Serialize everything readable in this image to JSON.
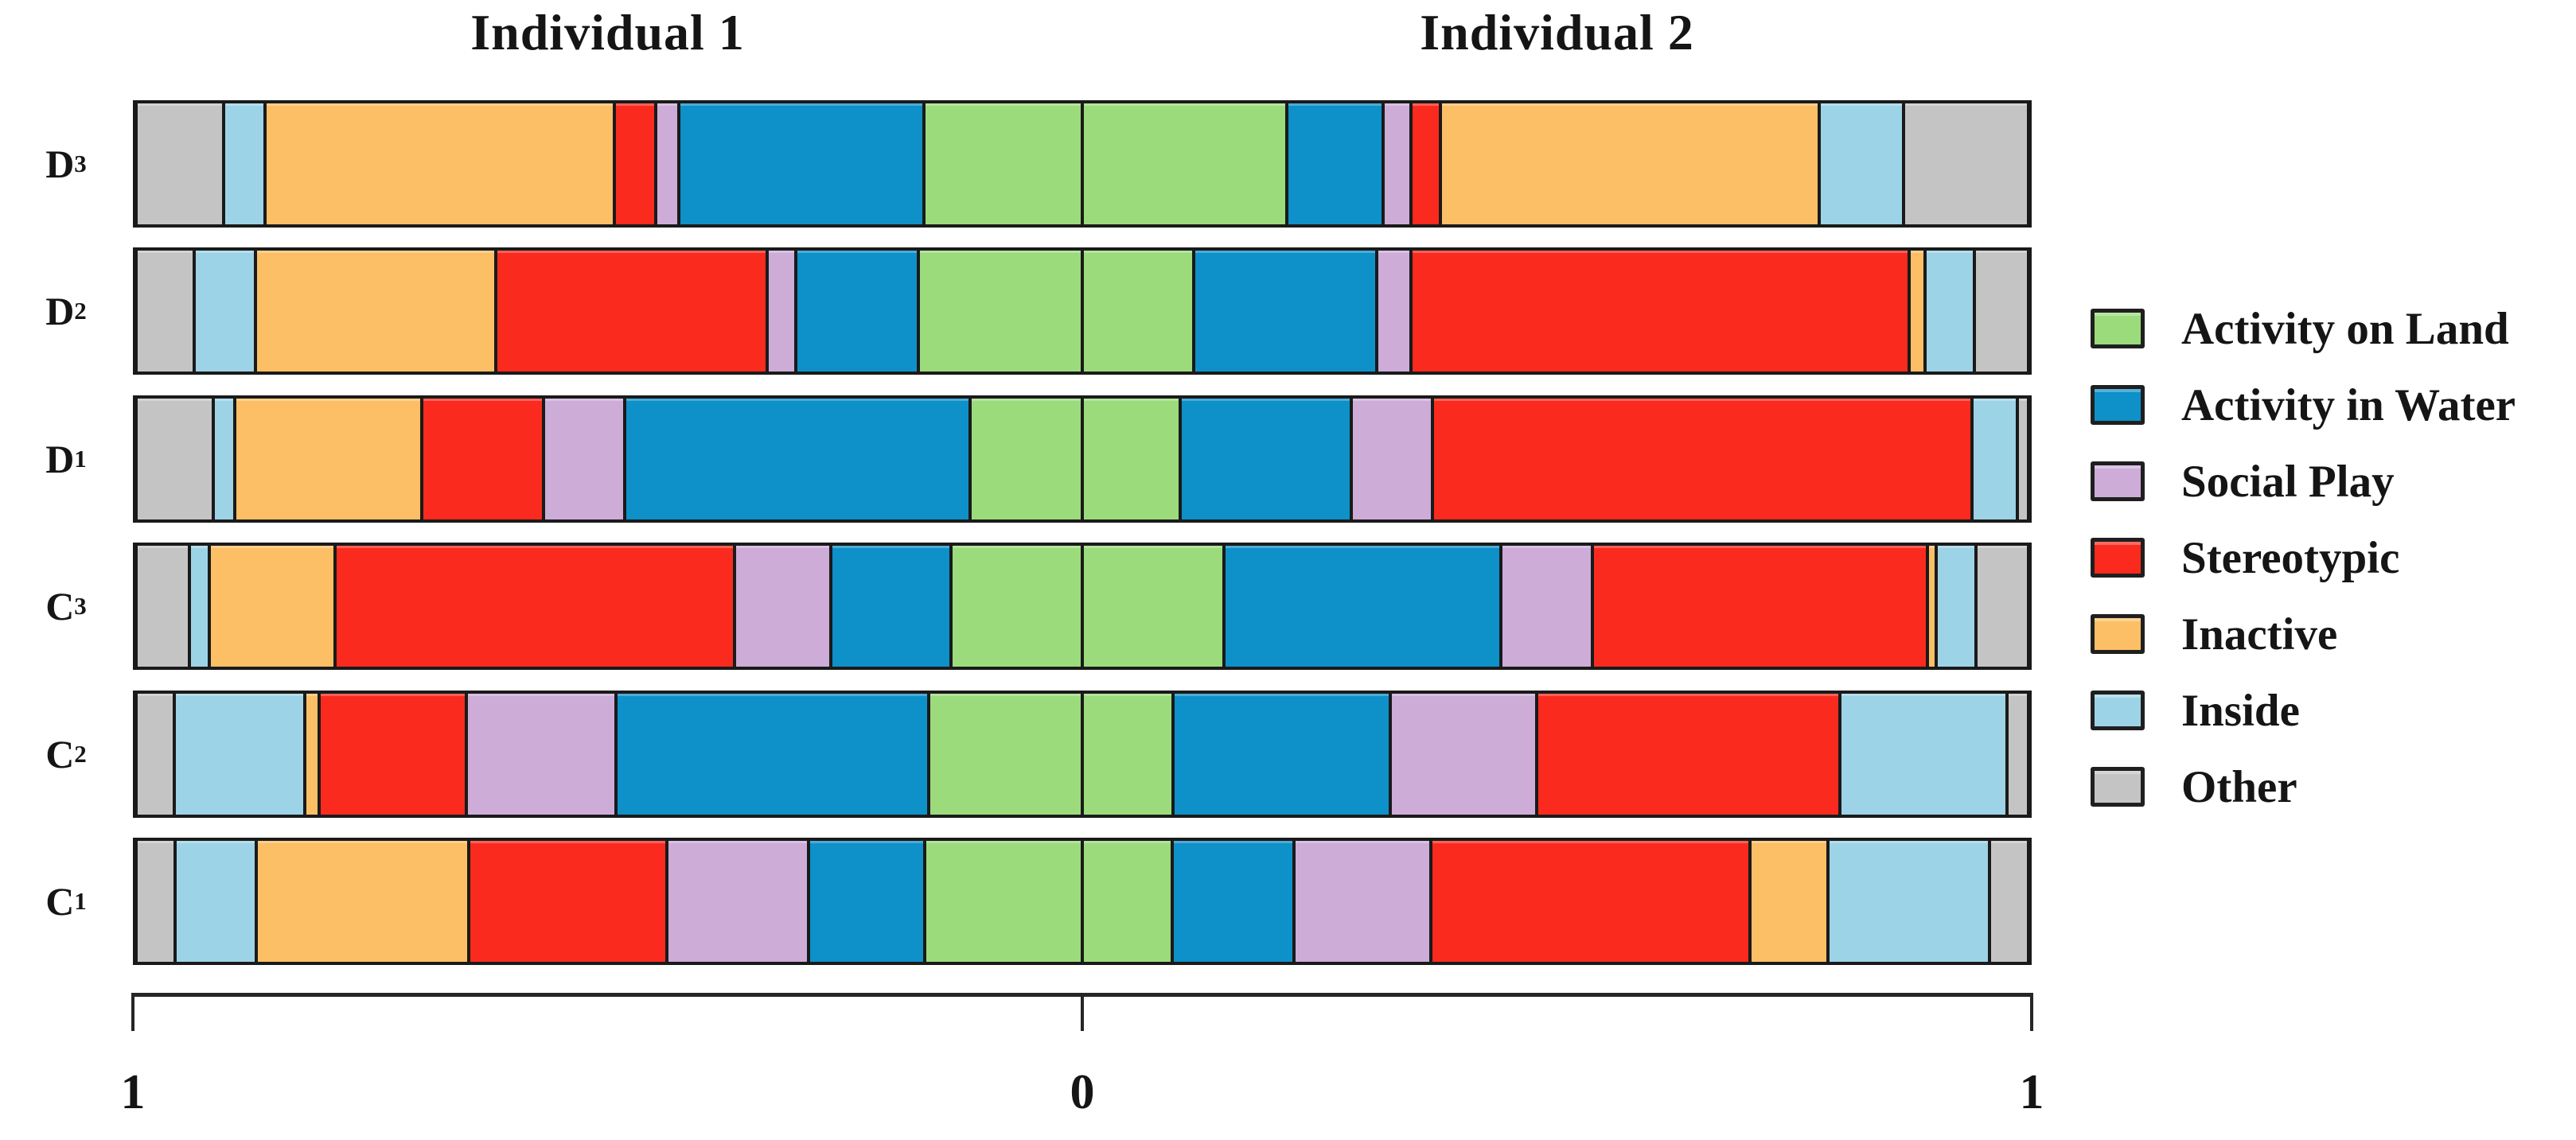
{
  "chart_data": {
    "type": "bar",
    "subtype": "diverging-stacked-horizontal",
    "title_left": "Individual 1",
    "title_right": "Individual 2",
    "axis": {
      "left_label": "1",
      "center_label": "0",
      "right_label": "1",
      "range_each_side": [
        0,
        1
      ],
      "grid": false
    },
    "legend_position": "right",
    "categories": [
      {
        "key": "land",
        "label": "Activity on Land",
        "color": "#9BDB7C"
      },
      {
        "key": "water",
        "label": "Activity in Water",
        "color": "#0E90C9"
      },
      {
        "key": "social",
        "label": "Social Play",
        "color": "#CDACD8"
      },
      {
        "key": "stereo",
        "label": "Stereotypic",
        "color": "#FA2B1E"
      },
      {
        "key": "inactive",
        "label": "Inactive",
        "color": "#FCBF66"
      },
      {
        "key": "inside",
        "label": "Inside",
        "color": "#9DD3E6"
      },
      {
        "key": "other",
        "label": "Other",
        "color": "#C4C4C4"
      }
    ],
    "category_order_note": "values listed from chart center (0) outward toward 1 on each side",
    "rows": [
      {
        "label_base": "D",
        "label_sub": "3",
        "individual1": [
          0.168,
          0.262,
          0.021,
          0.042,
          0.374,
          0.042,
          0.091
        ],
        "individual2": [
          0.218,
          0.101,
          0.026,
          0.029,
          0.406,
          0.088,
          0.132
        ]
      },
      {
        "label_base": "D",
        "label_sub": "2",
        "individual1": [
          0.174,
          0.129,
          0.028,
          0.29,
          0.257,
          0.063,
          0.059
        ],
        "individual2": [
          0.117,
          0.195,
          0.033,
          0.536,
          0.014,
          0.05,
          0.055
        ]
      },
      {
        "label_base": "D",
        "label_sub": "1",
        "individual1": [
          0.118,
          0.37,
          0.085,
          0.128,
          0.199,
          0.02,
          0.08
        ],
        "individual2": [
          0.102,
          0.182,
          0.084,
          0.58,
          0.0,
          0.045,
          0.009
        ]
      },
      {
        "label_base": "C",
        "label_sub": "3",
        "individual1": [
          0.139,
          0.126,
          0.101,
          0.429,
          0.133,
          0.018,
          0.054
        ],
        "individual2": [
          0.15,
          0.296,
          0.096,
          0.359,
          0.006,
          0.04,
          0.053
        ]
      },
      {
        "label_base": "C",
        "label_sub": "2",
        "individual1": [
          0.163,
          0.335,
          0.158,
          0.156,
          0.012,
          0.138,
          0.038
        ],
        "individual2": [
          0.094,
          0.231,
          0.155,
          0.323,
          0.0,
          0.177,
          0.02
        ]
      },
      {
        "label_base": "C",
        "label_sub": "1",
        "individual1": [
          0.167,
          0.122,
          0.15,
          0.211,
          0.227,
          0.084,
          0.039
        ],
        "individual2": [
          0.094,
          0.128,
          0.145,
          0.342,
          0.081,
          0.171,
          0.039
        ]
      }
    ]
  }
}
